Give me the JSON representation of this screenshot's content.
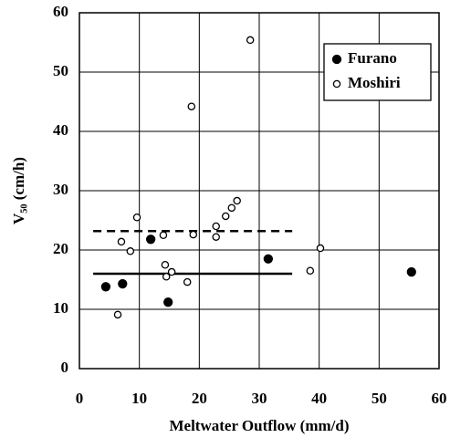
{
  "chart_data": {
    "type": "scatter",
    "x_label": "Meltwater Outflow  (mm/d)",
    "y_label": "V₅₀  (cm/h)",
    "xlim": [
      0,
      60
    ],
    "xticks": [
      0,
      10,
      20,
      30,
      40,
      50,
      60
    ],
    "ylim": [
      0,
      60
    ],
    "yticks": [
      0,
      10,
      20,
      30,
      40,
      50,
      60
    ],
    "grid": true,
    "legend": "upper right",
    "series": [
      {
        "name": "Furano",
        "marker": "filled",
        "color": "#000000",
        "x": [
          4.4,
          7.2,
          11.9,
          14.8,
          31.5,
          55.4
        ],
        "values": [
          13.8,
          14.3,
          21.8,
          11.2,
          18.5,
          16.3
        ]
      },
      {
        "name": "Moshiri",
        "marker": "open",
        "color": "#000000",
        "x": [
          6.4,
          7.0,
          8.5,
          9.6,
          14.0,
          14.3,
          14.5,
          15.4,
          18.0,
          18.7,
          19.0,
          22.8,
          22.8,
          24.4,
          25.4,
          26.3,
          28.5,
          38.5,
          40.2
        ],
        "values": [
          9.1,
          21.4,
          19.8,
          25.5,
          22.5,
          17.5,
          15.5,
          16.3,
          14.6,
          44.2,
          22.6,
          22.2,
          24.0,
          25.7,
          27.1,
          28.3,
          55.4,
          16.5,
          20.3
        ]
      }
    ],
    "reference_lines": [
      {
        "style": "solid",
        "x": [
          2.3,
          35.5
        ],
        "y": 16.0
      },
      {
        "style": "dashed",
        "x": [
          2.3,
          35.5
        ],
        "y": 23.2
      }
    ]
  }
}
